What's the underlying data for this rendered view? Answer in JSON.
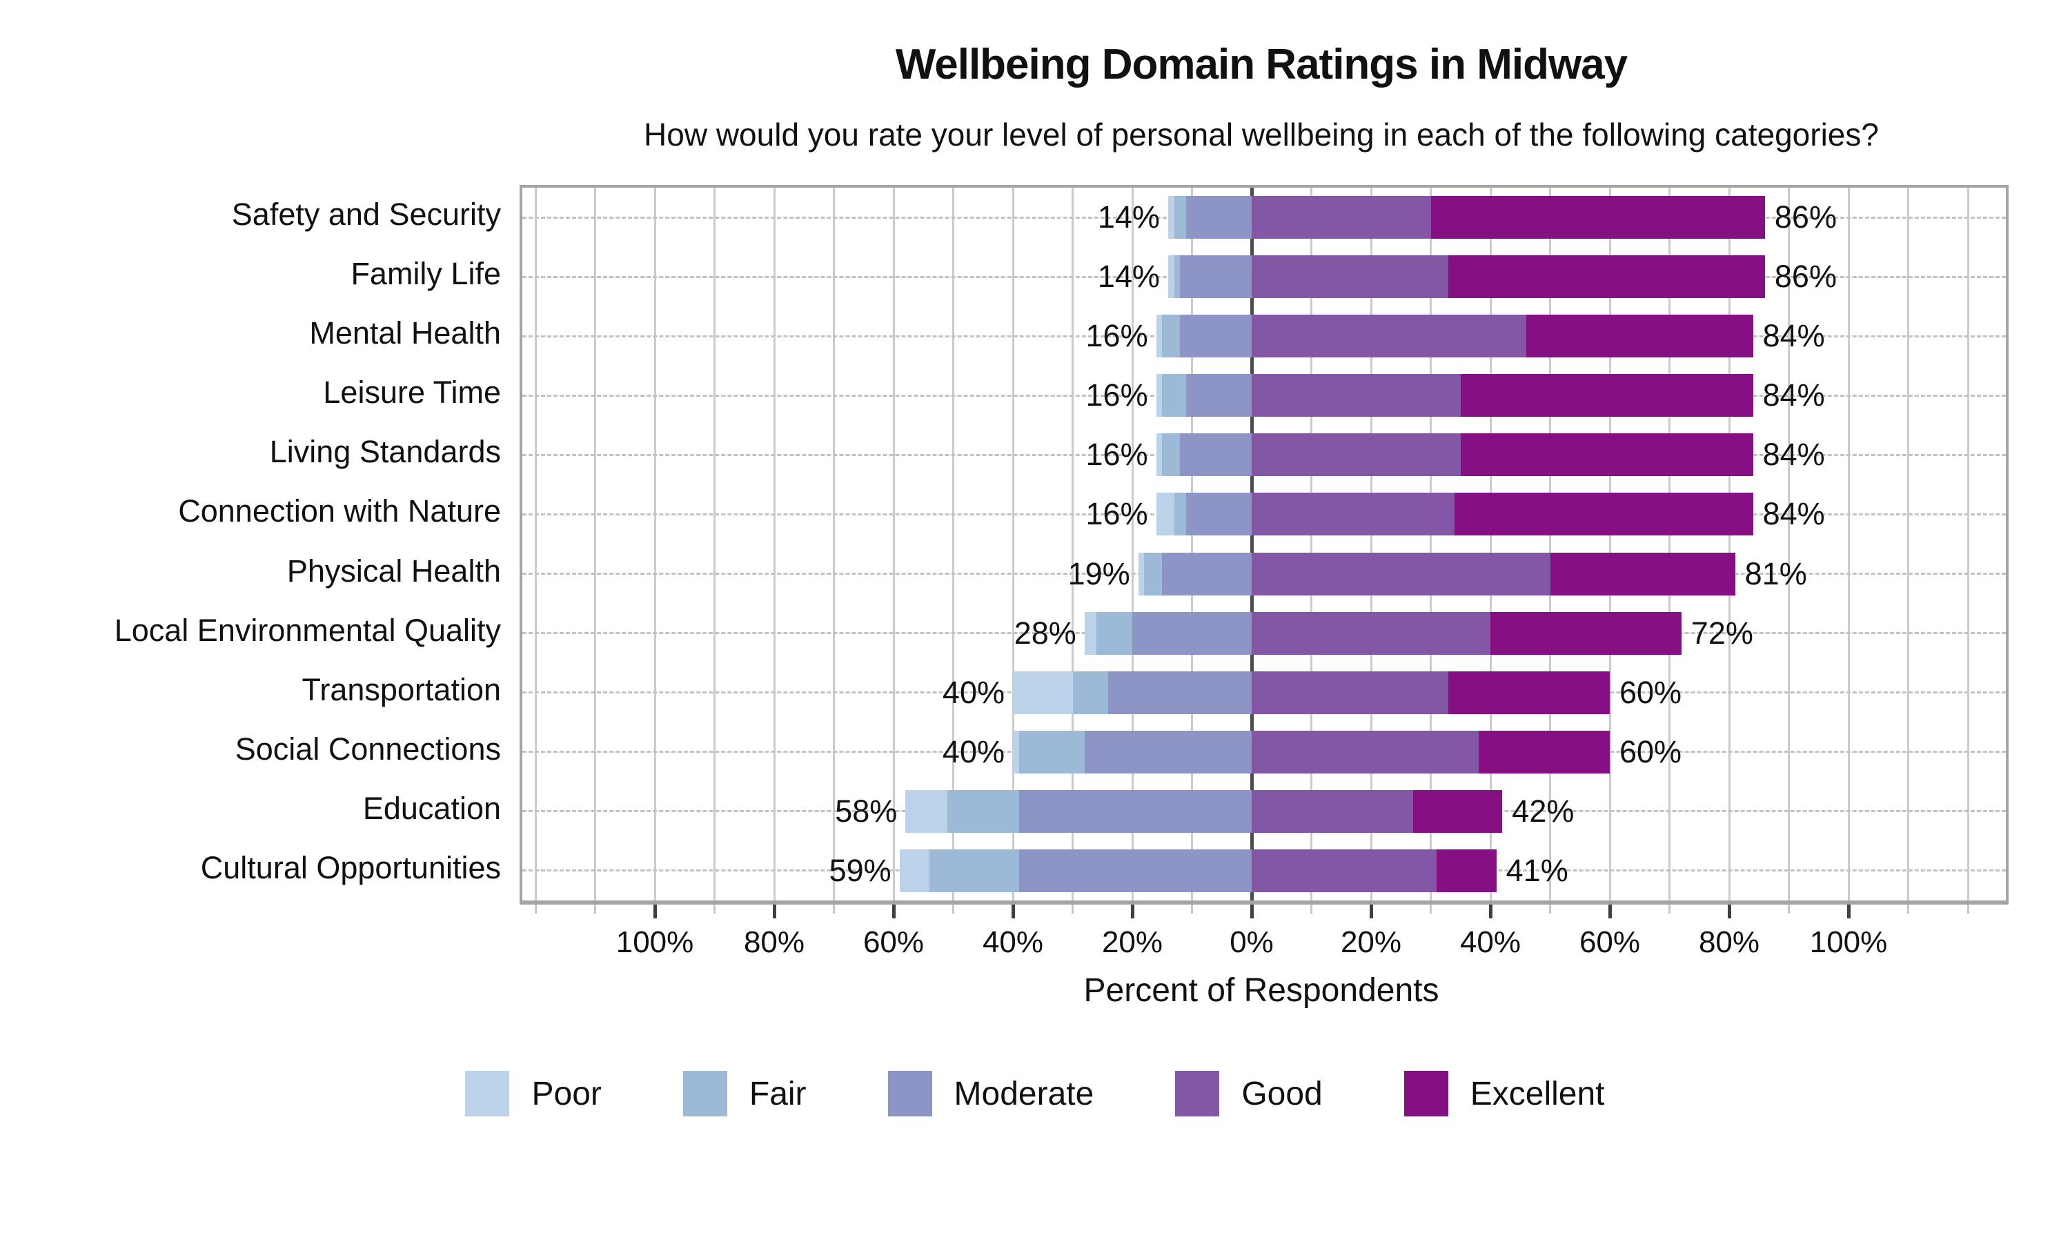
{
  "title": "Wellbeing Domain Ratings in Midway",
  "subtitle": "How would you rate your level of personal wellbeing in each of the following categories?",
  "xlabel": "Percent of Respondents",
  "chart_data": {
    "type": "bar",
    "subtype": "diverging_stacked_likert",
    "title": "Wellbeing Domain Ratings in Midway",
    "subtitle": "How would you rate your level of personal wellbeing in each of the following categories?",
    "xlabel": "Percent of Respondents",
    "legend_position": "bottom",
    "grid": "vertical solid every 10%, horizontal dashed per category",
    "xlim": [
      -122,
      126
    ],
    "x_major_ticks": [
      -100,
      -80,
      -60,
      -40,
      -20,
      0,
      20,
      40,
      60,
      80,
      100
    ],
    "x_major_tick_labels": [
      "100%",
      "80%",
      "60%",
      "40%",
      "20%",
      "0%",
      "20%",
      "40%",
      "60%",
      "80%",
      "100%"
    ],
    "categories": [
      "Safety and Security",
      "Family Life",
      "Mental Health",
      "Leisure Time",
      "Living Standards",
      "Connection with Nature",
      "Physical Health",
      "Local Environmental Quality",
      "Transportation",
      "Social Connections",
      "Education",
      "Cultural Opportunities"
    ],
    "series": [
      {
        "name": "Poor",
        "side": "left",
        "color": "#bcd2e8",
        "values": [
          1,
          1,
          1,
          1,
          1,
          3,
          1,
          2,
          10,
          1,
          7,
          5
        ]
      },
      {
        "name": "Fair",
        "side": "left",
        "color": "#9cbad8",
        "values": [
          2,
          1,
          3,
          4,
          3,
          2,
          3,
          6,
          6,
          11,
          12,
          15
        ]
      },
      {
        "name": "Moderate",
        "side": "left",
        "color": "#8c95c5",
        "values": [
          11,
          12,
          12,
          11,
          12,
          11,
          15,
          20,
          24,
          28,
          39,
          39
        ]
      },
      {
        "name": "Good",
        "side": "right",
        "color": "#8356a6",
        "values": [
          30,
          33,
          46,
          35,
          35,
          34,
          50,
          40,
          33,
          38,
          27,
          31
        ]
      },
      {
        "name": "Excellent",
        "side": "right",
        "color": "#841084",
        "values": [
          56,
          53,
          38,
          49,
          49,
          50,
          31,
          32,
          27,
          22,
          15,
          10
        ]
      }
    ],
    "left_total_labels": [
      "14%",
      "14%",
      "16%",
      "16%",
      "16%",
      "16%",
      "19%",
      "28%",
      "40%",
      "40%",
      "58%",
      "59%"
    ],
    "right_total_labels": [
      "86%",
      "86%",
      "84%",
      "84%",
      "84%",
      "84%",
      "81%",
      "72%",
      "60%",
      "60%",
      "42%",
      "41%"
    ]
  },
  "style_colors": {
    "zero_line": "#4d4d4d",
    "gridline": "#cbcbcb",
    "row_dash": "#c2c2c2",
    "frame": "#a4a4a4",
    "major_tick": "#404040",
    "minor_tick": "#c6c6c6",
    "text": "#111111"
  }
}
